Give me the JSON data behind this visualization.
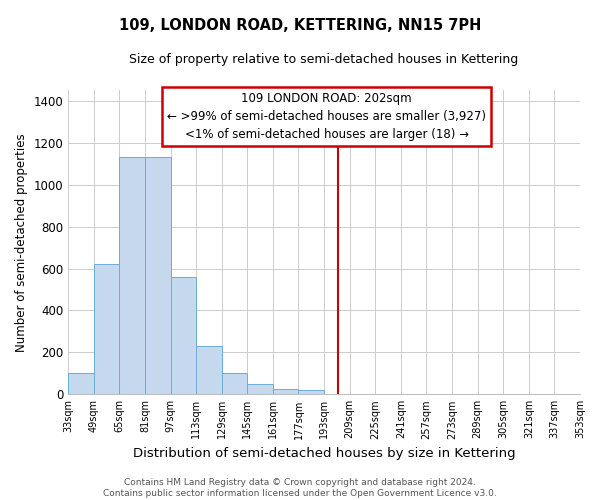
{
  "title": "109, LONDON ROAD, KETTERING, NN15 7PH",
  "subtitle": "Size of property relative to semi-detached houses in Kettering",
  "xlabel": "Distribution of semi-detached houses by size in Kettering",
  "ylabel": "Number of semi-detached properties",
  "bin_edges": [
    33,
    49,
    65,
    81,
    97,
    113,
    129,
    145,
    161,
    177,
    193,
    209,
    225,
    241,
    257,
    273,
    289,
    305,
    321,
    337,
    353
  ],
  "bar_heights": [
    100,
    620,
    1130,
    1130,
    560,
    230,
    100,
    50,
    25,
    20,
    0,
    0,
    0,
    0,
    0,
    0,
    0,
    0,
    0,
    0
  ],
  "bar_color": "#c5d8ed",
  "bar_edge_color": "#6aaed6",
  "vline_x": 202,
  "vline_color": "#cc0000",
  "ylim": [
    0,
    1450
  ],
  "yticks": [
    0,
    200,
    400,
    600,
    800,
    1000,
    1200,
    1400
  ],
  "legend_title": "109 LONDON ROAD: 202sqm",
  "legend_line1": "← >99% of semi-detached houses are smaller (3,927)",
  "legend_line2": "<1% of semi-detached houses are larger (18) →",
  "legend_box_color": "#ffffff",
  "legend_box_edge": "#cc0000",
  "footer_line1": "Contains HM Land Registry data © Crown copyright and database right 2024.",
  "footer_line2": "Contains public sector information licensed under the Open Government Licence v3.0.",
  "background_color": "#ffffff",
  "grid_color": "#cccccc"
}
